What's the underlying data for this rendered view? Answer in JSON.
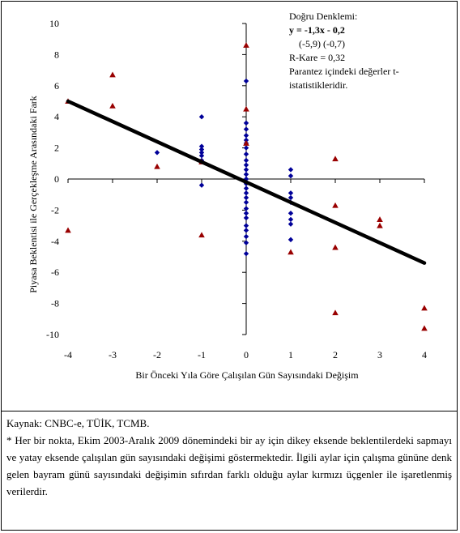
{
  "chart_data": {
    "type": "scatter",
    "title": "",
    "xlabel": "Bir Önceki Yıla Göre Çalışılan Gün Sayısındaki Değişim",
    "ylabel": "Piyasa Beklentisi ile Gerçekleşme Arasındaki Fark",
    "xlim": [
      -4,
      4
    ],
    "ylim": [
      -10,
      10
    ],
    "x_ticks": [
      "-4",
      "-3",
      "-2",
      "-1",
      "0",
      "1",
      "2",
      "3",
      "4"
    ],
    "y_ticks": [
      "10",
      "8",
      "6",
      "4",
      "2",
      "0",
      "-2",
      "-4",
      "-6",
      "-8",
      "-10"
    ],
    "grid": false,
    "series": [
      {
        "marker": "diamond",
        "color": "#000099",
        "points": [
          [
            -2,
            1.7
          ],
          [
            -1,
            4.0
          ],
          [
            -1,
            2.1
          ],
          [
            -1,
            1.9
          ],
          [
            -1,
            1.7
          ],
          [
            -1,
            1.5
          ],
          [
            -1,
            1.2
          ],
          [
            -1,
            -0.4
          ],
          [
            0,
            6.3
          ],
          [
            0,
            3.6
          ],
          [
            0,
            3.2
          ],
          [
            0,
            2.8
          ],
          [
            0,
            2.5
          ],
          [
            0,
            2.3
          ],
          [
            0,
            2.0
          ],
          [
            0,
            1.6
          ],
          [
            0,
            1.2
          ],
          [
            0,
            0.9
          ],
          [
            0,
            0.6
          ],
          [
            0,
            0.3
          ],
          [
            0,
            0.0
          ],
          [
            0,
            -0.3
          ],
          [
            0,
            -0.6
          ],
          [
            0,
            -0.9
          ],
          [
            0,
            -1.2
          ],
          [
            0,
            -1.5
          ],
          [
            0,
            -1.9
          ],
          [
            0,
            -2.2
          ],
          [
            0,
            -2.5
          ],
          [
            0,
            -3.0
          ],
          [
            0,
            -3.3
          ],
          [
            0,
            -3.7
          ],
          [
            0,
            -4.1
          ],
          [
            0,
            -4.8
          ],
          [
            1,
            0.6
          ],
          [
            1,
            0.2
          ],
          [
            1,
            -0.9
          ],
          [
            1,
            -1.2
          ],
          [
            1,
            -1.5
          ],
          [
            1,
            -2.2
          ],
          [
            1,
            -2.6
          ],
          [
            1,
            -2.9
          ],
          [
            1,
            -3.9
          ]
        ]
      },
      {
        "marker": "triangle",
        "color": "#990000",
        "points": [
          [
            -4,
            5.0
          ],
          [
            -4,
            -3.3
          ],
          [
            -3,
            6.7
          ],
          [
            -3,
            4.7
          ],
          [
            -2,
            0.8
          ],
          [
            -1,
            1.1
          ],
          [
            -1,
            -3.6
          ],
          [
            0,
            8.6
          ],
          [
            0,
            4.5
          ],
          [
            0,
            2.3
          ],
          [
            1,
            -4.7
          ],
          [
            2,
            1.3
          ],
          [
            2,
            -1.7
          ],
          [
            2,
            -4.4
          ],
          [
            2,
            -8.6
          ],
          [
            3,
            -2.6
          ],
          [
            3,
            -3.0
          ],
          [
            4,
            -8.3
          ],
          [
            4,
            -9.6
          ]
        ]
      }
    ],
    "trendline": {
      "slope": -1.3,
      "intercept": -0.2,
      "color": "#000000"
    }
  },
  "equation_box": {
    "heading": "Doğru Denklemi:",
    "equation": "y = -1,3x - 0,2",
    "tstats": "(-5,9)  (-0,7)",
    "rsq": "R-Kare  = 0,32",
    "note": "Parantez içindeki değerler t-istatistikleridir."
  },
  "notes": {
    "source": "Kaynak: CNBC-e, TÜİK, TCMB.",
    "footnote": "* Her bir nokta, Ekim 2003-Aralık 2009 dönemindeki bir ay için dikey eksende beklentilerdeki sapmayı ve yatay eksende çalışılan gün sayısındaki değişimi göstermektedir. İlgili aylar için çalışma gününe denk gelen bayram günü sayısındaki değişimin sıfırdan farklı olduğu aylar kırmızı üçgenler ile işaretlenmiş verilerdir."
  }
}
